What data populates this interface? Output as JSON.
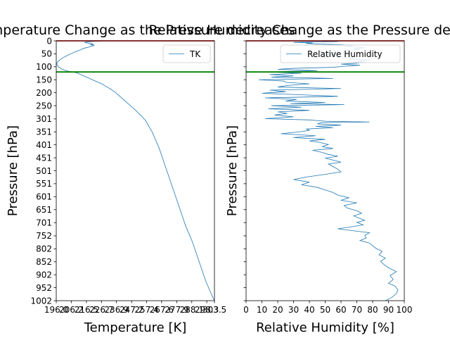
{
  "chart_data": [
    {
      "type": "line",
      "title": "Temperature Change as the Pressure decreases",
      "xlabel": "Temperature [K]",
      "ylabel": "Pressure [hPa]",
      "xlim": [
        196.0,
        303.5
      ],
      "ylim": [
        1002,
        0
      ],
      "xticks": [
        196.0,
        206.2,
        216.5,
        226.7,
        236.9,
        247.2,
        257.4,
        267.6,
        277.9,
        288.1,
        298.3,
        303.5
      ],
      "xtick_labels": [
        "196.0",
        "206.2",
        "216.5",
        "226.7",
        "236.9",
        "247.2",
        "257.4",
        "267.6",
        "277.9",
        "288.1",
        "298.3",
        "303.5"
      ],
      "yticks": [
        0,
        50,
        100,
        150,
        200,
        250,
        301,
        351,
        401,
        451,
        501,
        551,
        601,
        651,
        701,
        752,
        802,
        852,
        902,
        952,
        1002
      ],
      "ytick_labels": [
        "0",
        "50",
        "100",
        "150",
        "200",
        "250",
        "301",
        "351",
        "401",
        "451",
        "501",
        "551",
        "601",
        "651",
        "701",
        "752",
        "802",
        "852",
        "902",
        "952",
        "1002"
      ],
      "hlines": [
        {
          "y": 0,
          "color": "#d62728"
        },
        {
          "y": 120,
          "color": "#008000"
        }
      ],
      "legend": "top-right",
      "series": [
        {
          "name": "TK",
          "color": "#1f77b4",
          "x": [
            303.5,
            302,
            300.5,
            299,
            297.5,
            296,
            294.5,
            293,
            291.5,
            290,
            288.5,
            287,
            285.5,
            284,
            282.5,
            281,
            279.5,
            278,
            276.5,
            275,
            273.5,
            272,
            270.5,
            269,
            267.5,
            266,
            264.5,
            263,
            261.5,
            260,
            258.5,
            257,
            255.5,
            254,
            252,
            250,
            248,
            246,
            244,
            242,
            240,
            238,
            236,
            233,
            230,
            227,
            223,
            219,
            215,
            211,
            208,
            205,
            202,
            199.5,
            197.5,
            196.5,
            196.5,
            197.5,
            199,
            201,
            203,
            205,
            207,
            209,
            211,
            213,
            214,
            216,
            218,
            220,
            221,
            222,
            219,
            221,
            220,
            219,
            217,
            215,
            216,
            218,
            220,
            220,
            222,
            225,
            226,
            224
          ],
          "y": [
            1002,
            985,
            965,
            945,
            925,
            900,
            875,
            850,
            825,
            800,
            775,
            755,
            735,
            715,
            690,
            665,
            640,
            615,
            590,
            565,
            540,
            515,
            490,
            465,
            440,
            415,
            395,
            375,
            355,
            340,
            325,
            310,
            300,
            290,
            280,
            268,
            258,
            248,
            238,
            228,
            218,
            208,
            198,
            186,
            176,
            166,
            156,
            146,
            136,
            126,
            120,
            118,
            114,
            108,
            100,
            92,
            85,
            78,
            71,
            64,
            58,
            52,
            47,
            42,
            38,
            34,
            30,
            27,
            24,
            21,
            19,
            17,
            15,
            13,
            11,
            10,
            8,
            6,
            5,
            4,
            3,
            2.5,
            2,
            1.5,
            1,
            0.5
          ]
        }
      ]
    },
    {
      "type": "line",
      "title": "Relative Humidity Change as the Pressure decreases",
      "xlabel": "Relative Humidity [%]",
      "ylabel": "Pressure [hPa]",
      "xlim": [
        0,
        100
      ],
      "ylim": [
        1002,
        0
      ],
      "xticks": [
        0,
        10,
        20,
        30,
        40,
        50,
        60,
        70,
        80,
        90,
        100
      ],
      "xtick_labels": [
        "0",
        "10",
        "20",
        "30",
        "40",
        "50",
        "60",
        "70",
        "80",
        "90",
        "100"
      ],
      "yticks": [
        0,
        50,
        100,
        150,
        200,
        250,
        301,
        351,
        401,
        451,
        501,
        551,
        601,
        651,
        701,
        752,
        802,
        852,
        902,
        952,
        1002
      ],
      "hlines": [
        {
          "y": 0,
          "color": "#d62728"
        },
        {
          "y": 120,
          "color": "#008000"
        }
      ],
      "legend": "top-right",
      "series": [
        {
          "name": "Relative Humidity",
          "color": "#1f77b4",
          "x": [
            88,
            92,
            95,
            96,
            94,
            90,
            93,
            91,
            95,
            90,
            87,
            85,
            88,
            84,
            86,
            82,
            80,
            78,
            72,
            76,
            75,
            78,
            58,
            74,
            70,
            75,
            72,
            68,
            73,
            70,
            64,
            62,
            70,
            60,
            65,
            58,
            55,
            50,
            45,
            35,
            40,
            30,
            38,
            50,
            60,
            58,
            55,
            52,
            60,
            55,
            50,
            58,
            52,
            48,
            42,
            55,
            48,
            52,
            47,
            40,
            50,
            30,
            44,
            22,
            35,
            40,
            38,
            55,
            44,
            60,
            45,
            48,
            78,
            50,
            40,
            12,
            30,
            18,
            26,
            20,
            40,
            14,
            35,
            16,
            62,
            28,
            50,
            25,
            32,
            12,
            58,
            35,
            10,
            25,
            15,
            60,
            20,
            26,
            40,
            25,
            24,
            8,
            55,
            16,
            30,
            15,
            35,
            14,
            45,
            20,
            30,
            55,
            62,
            72,
            60,
            70,
            75,
            70,
            78,
            65,
            68,
            60,
            55,
            48,
            60,
            52,
            45,
            62,
            72,
            68,
            75,
            70,
            62,
            68,
            60,
            45,
            38,
            42,
            30,
            35,
            45,
            58,
            48,
            60,
            45
          ],
          "y": [
            1002,
            990,
            975,
            960,
            945,
            935,
            920,
            905,
            890,
            875,
            862,
            850,
            838,
            825,
            812,
            800,
            790,
            780,
            770,
            760,
            750,
            740,
            725,
            710,
            700,
            692,
            685,
            675,
            665,
            655,
            645,
            635,
            625,
            615,
            605,
            595,
            585,
            575,
            565,
            555,
            545,
            535,
            525,
            515,
            505,
            495,
            485,
            475,
            468,
            460,
            452,
            445,
            438,
            430,
            422,
            415,
            408,
            400,
            392,
            386,
            380,
            373,
            366,
            358,
            350,
            345,
            340,
            335,
            330,
            325,
            320,
            315,
            313,
            310,
            305,
            300,
            293,
            286,
            280,
            274,
            268,
            262,
            256,
            250,
            246,
            242,
            238,
            232,
            226,
            220,
            214,
            208,
            202,
            196,
            190,
            184,
            178,
            172,
            166,
            160,
            155,
            150,
            145,
            140,
            135,
            130,
            125,
            120,
            115,
            110,
            106,
            102,
            98,
            94,
            90,
            86,
            82,
            78,
            74,
            70,
            66,
            62,
            58,
            54,
            50,
            46,
            42,
            38,
            34,
            30,
            27,
            24,
            21,
            18,
            15,
            12,
            10,
            8,
            6,
            5,
            4,
            3,
            2,
            1,
            0.5
          ]
        }
      ]
    }
  ]
}
